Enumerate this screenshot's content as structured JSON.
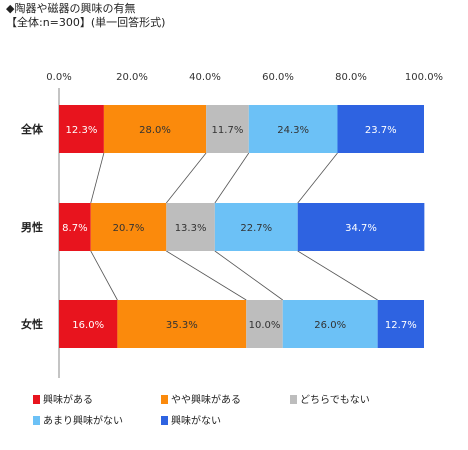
{
  "title": "◆陶器や磁器の興味の有無",
  "subtitle": "【全体:n=300】(単一回答形式)",
  "chart_data": {
    "type": "bar",
    "stacked": true,
    "orientation": "horizontal",
    "percent_stacked": true,
    "categories": [
      "全体",
      "男性",
      "女性"
    ],
    "xlim": [
      0,
      100
    ],
    "ticks": [
      "0.0%",
      "20.0%",
      "40.0%",
      "60.0%",
      "80.0%",
      "100.0%"
    ],
    "tick_values": [
      0,
      20,
      40,
      60,
      80,
      100
    ],
    "legend_position": "bottom",
    "series": [
      {
        "name": "興味がある",
        "color": "#e8141e",
        "values": [
          12.3,
          8.7,
          16.0
        ]
      },
      {
        "name": "やや興味がある",
        "color": "#fb8a0c",
        "values": [
          28.0,
          20.7,
          35.3
        ]
      },
      {
        "name": "どちらでもない",
        "color": "#bdbdbd",
        "values": [
          11.7,
          13.3,
          10.0
        ]
      },
      {
        "name": "あまり興味がない",
        "color": "#6cc1f6",
        "values": [
          24.3,
          22.7,
          26.0
        ]
      },
      {
        "name": "興味がない",
        "color": "#2e63e1",
        "values": [
          23.7,
          34.7,
          12.7
        ]
      }
    ]
  }
}
